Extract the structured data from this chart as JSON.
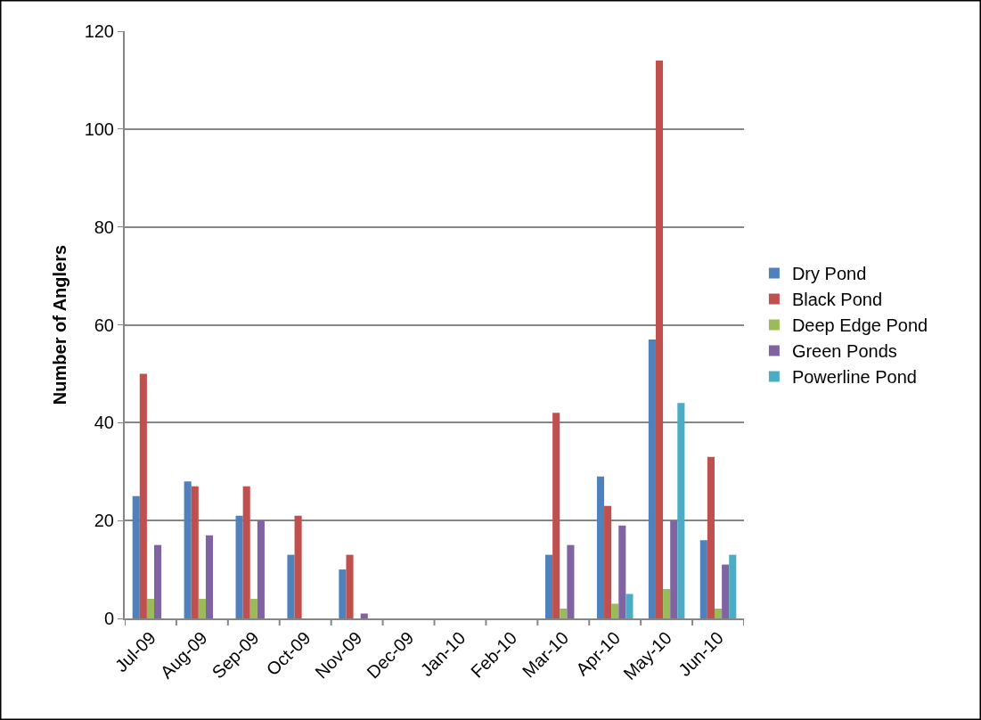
{
  "chart_data": {
    "type": "bar",
    "ylabel": "Number of Anglers",
    "categories": [
      "Jul-09",
      "Aug-09",
      "Sep-09",
      "Oct-09",
      "Nov-09",
      "Dec-09",
      "Jan-10",
      "Feb-10",
      "Mar-10",
      "Apr-10",
      "May-10",
      "Jun-10"
    ],
    "series": [
      {
        "name": "Dry Pond",
        "color": "#4f81bd",
        "values": [
          25,
          28,
          21,
          13,
          10,
          null,
          null,
          null,
          13,
          29,
          57,
          16
        ]
      },
      {
        "name": "Black Pond",
        "color": "#c0504d",
        "values": [
          50,
          27,
          27,
          21,
          13,
          null,
          null,
          null,
          42,
          23,
          114,
          33
        ]
      },
      {
        "name": "Deep Edge Pond",
        "color": "#9bbb59",
        "values": [
          4,
          4,
          4,
          null,
          null,
          null,
          null,
          null,
          2,
          3,
          6,
          2
        ]
      },
      {
        "name": "Green Ponds",
        "color": "#8064a2",
        "values": [
          15,
          17,
          20,
          null,
          1,
          null,
          null,
          null,
          15,
          19,
          20,
          11
        ]
      },
      {
        "name": "Powerline Pond",
        "color": "#4bacc6",
        "values": [
          null,
          null,
          null,
          null,
          null,
          null,
          null,
          null,
          null,
          5,
          44,
          13
        ]
      }
    ],
    "ylim": [
      0,
      120
    ],
    "yticks": [
      0,
      20,
      40,
      60,
      80,
      100,
      120
    ],
    "grid": "y",
    "legend": "right"
  }
}
